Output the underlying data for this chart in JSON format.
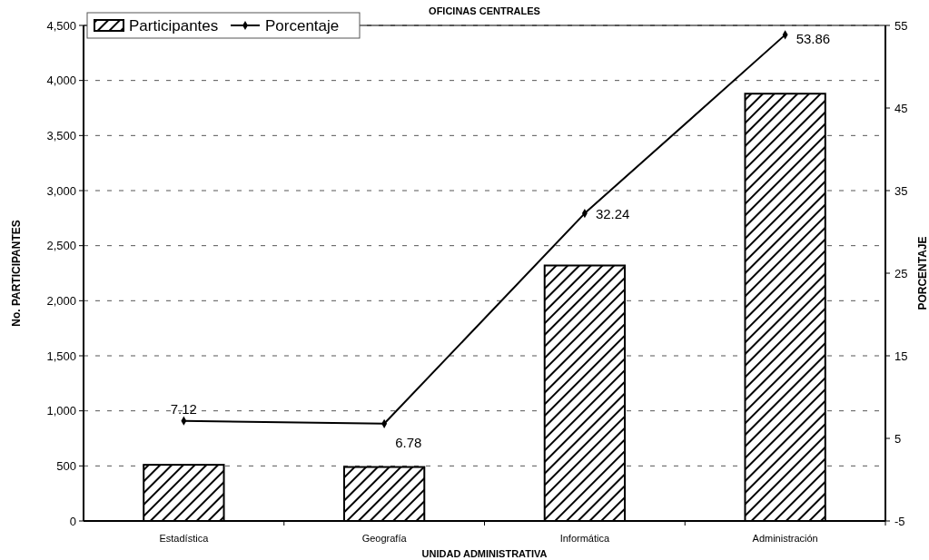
{
  "chart_data": {
    "type": "bar",
    "title": "OFICINAS CENTRALES",
    "xlabel": "UNIDAD ADMINISTRATIVA",
    "ylabel": "No. PARTICIPANTES",
    "y2label": "PORCENTAJE",
    "categories": [
      "Estadística",
      "Geografía",
      "Informática",
      "Administración"
    ],
    "series": [
      {
        "name": "Participantes",
        "color": "#000000",
        "values": [
          510,
          490,
          2320,
          3880
        ]
      },
      {
        "name": "Porcentaje",
        "type": "line",
        "axis": "y2",
        "color": "#000000",
        "values": [
          7.12,
          6.78,
          32.24,
          53.86
        ],
        "value_labels": [
          "7.12",
          "6.78",
          "32.24",
          "53.86"
        ]
      }
    ],
    "ylim": [
      0,
      4500
    ],
    "yticks": [
      {
        "value": 0,
        "label": "0"
      },
      {
        "value": 500,
        "label": "500"
      },
      {
        "value": 1000,
        "label": "1,000"
      },
      {
        "value": 1500,
        "label": "1,500"
      },
      {
        "value": 2000,
        "label": "2,000"
      },
      {
        "value": 2500,
        "label": "2,500"
      },
      {
        "value": 3000,
        "label": "3,000"
      },
      {
        "value": 3500,
        "label": "3,500"
      },
      {
        "value": 4000,
        "label": "4,000"
      },
      {
        "value": 4500,
        "label": "4,500"
      }
    ],
    "y2lim": [
      -5,
      55
    ],
    "y2ticks": [
      -5,
      5,
      15,
      25,
      35,
      45,
      55
    ],
    "grid": "y",
    "legend": "top left",
    "marker": "diamond"
  }
}
